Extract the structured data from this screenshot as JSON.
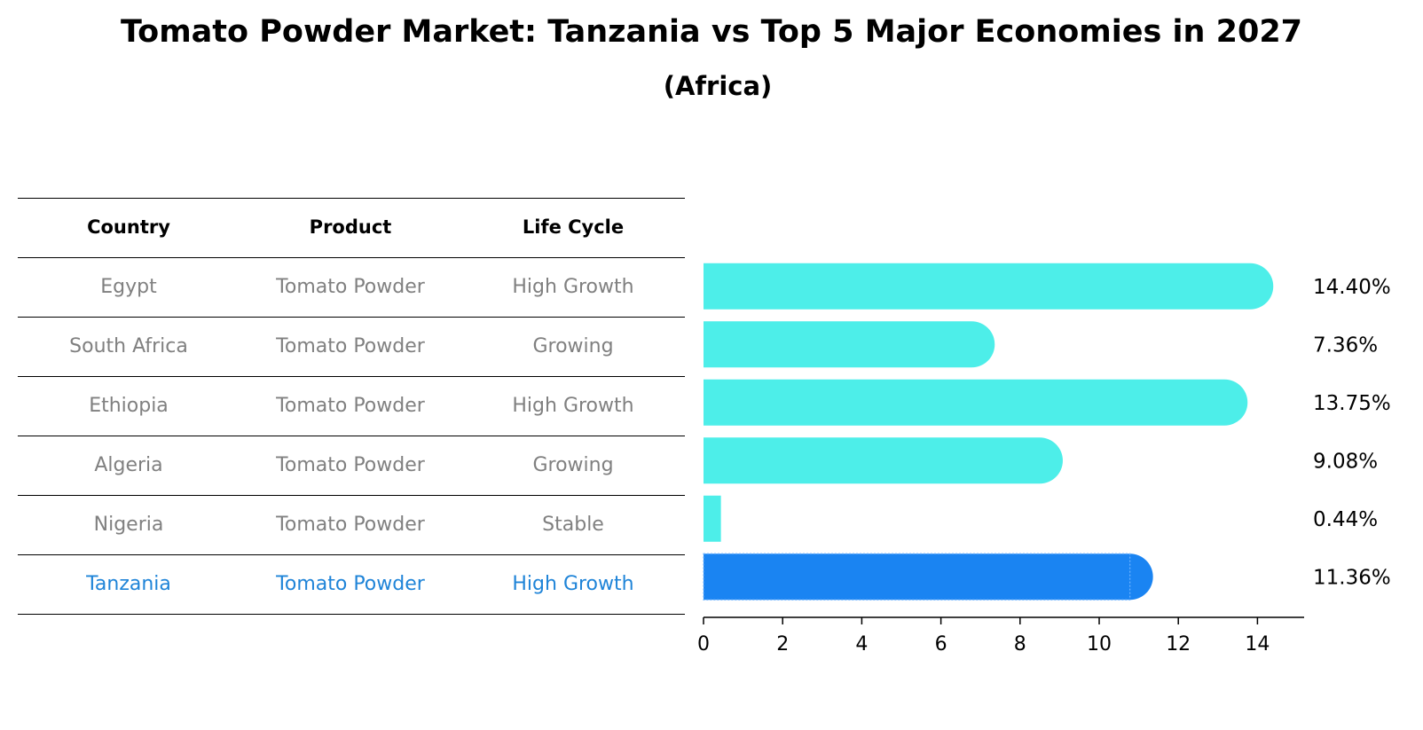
{
  "title": "Tomato Powder Market: Tanzania vs Top 5 Major Economies in 2027",
  "subtitle": "(Africa)",
  "table": {
    "headers": [
      "Country",
      "Product",
      "Life Cycle"
    ],
    "rows": [
      [
        "Egypt",
        "Tomato Powder",
        "High Growth"
      ],
      [
        "South Africa",
        "Tomato Powder",
        "Growing"
      ],
      [
        "Ethiopia",
        "Tomato Powder",
        "High Growth"
      ],
      [
        "Algeria",
        "Tomato Powder",
        "Growing"
      ],
      [
        "Nigeria",
        "Tomato Powder",
        "Stable"
      ],
      [
        "Tanzania",
        "Tomato Powder",
        "High Growth"
      ]
    ]
  },
  "colors": {
    "bar": "#4deee9",
    "highlight_bar": "#1a84f2",
    "highlight_text": "#1f84d8",
    "muted_text": "#808080"
  },
  "chart_data": {
    "type": "bar",
    "orientation": "horizontal",
    "categories": [
      "Egypt",
      "South Africa",
      "Ethiopia",
      "Algeria",
      "Nigeria",
      "Tanzania"
    ],
    "values": [
      14.4,
      7.36,
      13.75,
      9.08,
      0.44,
      11.36
    ],
    "value_labels": [
      "14.40%",
      "7.36%",
      "13.75%",
      "9.08%",
      "0.44%",
      "11.36%"
    ],
    "highlight": "Tanzania",
    "xlim": [
      0,
      15.2
    ],
    "xticks": [
      0,
      2,
      4,
      6,
      8,
      10,
      12,
      14
    ],
    "xlabel": "",
    "ylabel": "",
    "grid": false
  }
}
